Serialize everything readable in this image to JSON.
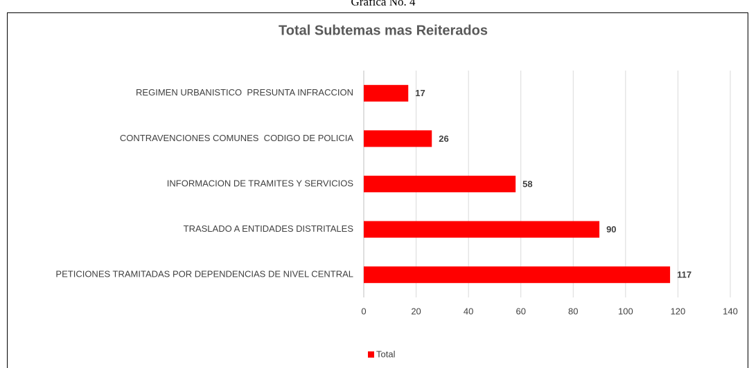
{
  "caption": "Grafica No. 4",
  "chart_data": {
    "type": "barh",
    "title": "Total Subtemas mas Reiterados",
    "categories": [
      "REGIMEN URBANISTICO  PRESUNTA INFRACCION",
      "CONTRAVENCIONES COMUNES  CODIGO DE POLICIA",
      "INFORMACION DE TRAMITES Y SERVICIOS",
      "TRASLADO A ENTIDADES DISTRITALES",
      "PETICIONES TRAMITADAS POR DEPENDENCIAS DE NIVEL CENTRAL"
    ],
    "series": [
      {
        "name": "Total",
        "color": "#ff0000",
        "values": [
          17,
          26,
          58,
          90,
          117
        ]
      }
    ],
    "xlim": [
      0,
      140
    ],
    "xticks": [
      0,
      20,
      40,
      60,
      80,
      100,
      120,
      140
    ],
    "grid": true,
    "legend": "bottom"
  }
}
